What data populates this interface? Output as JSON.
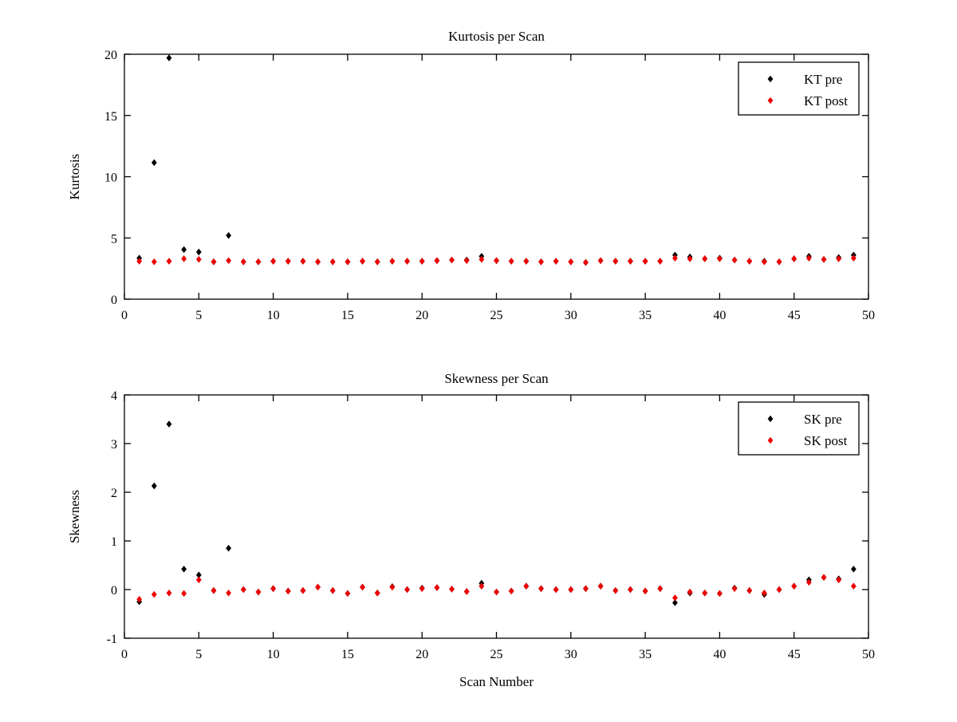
{
  "figure": {
    "background": "#ffffff",
    "axis_color": "#000000",
    "pre_color": "#000000",
    "post_color": "#ee0000"
  },
  "chart_data": [
    {
      "name": "kurtosis",
      "type": "scatter",
      "title": "Kurtosis per Scan",
      "xlabel": "",
      "ylabel": "Kurtosis",
      "xlim": [
        0,
        50
      ],
      "ylim": [
        0,
        20
      ],
      "xticks": [
        0,
        5,
        10,
        15,
        20,
        25,
        30,
        35,
        40,
        45,
        50
      ],
      "yticks": [
        0,
        5,
        10,
        15,
        20
      ],
      "grid": false,
      "marker": "diamond",
      "legend": {
        "position": "top-right",
        "entries": [
          "KT pre",
          "KT post"
        ]
      },
      "x": [
        1,
        2,
        3,
        4,
        5,
        6,
        7,
        8,
        9,
        10,
        11,
        12,
        13,
        14,
        15,
        16,
        17,
        18,
        19,
        20,
        21,
        22,
        23,
        24,
        25,
        26,
        27,
        28,
        29,
        30,
        31,
        32,
        33,
        34,
        35,
        36,
        37,
        38,
        39,
        40,
        41,
        42,
        43,
        44,
        45,
        46,
        47,
        48,
        49
      ],
      "series": [
        {
          "name": "KT pre",
          "color": "#000000",
          "values": [
            3.35,
            11.15,
            19.7,
            4.05,
            3.85,
            3.05,
            5.2,
            3.05,
            3.05,
            3.1,
            3.1,
            3.1,
            3.05,
            3.05,
            3.05,
            3.1,
            3.05,
            3.1,
            3.1,
            3.1,
            3.15,
            3.2,
            3.2,
            3.5,
            3.15,
            3.1,
            3.1,
            3.05,
            3.1,
            3.05,
            3.0,
            3.15,
            3.1,
            3.1,
            3.1,
            3.1,
            3.6,
            3.45,
            3.3,
            3.35,
            3.2,
            3.1,
            3.1,
            3.05,
            3.3,
            3.5,
            3.25,
            3.4,
            3.6
          ]
        },
        {
          "name": "KT post",
          "color": "#ee0000",
          "values": [
            3.1,
            3.05,
            3.1,
            3.3,
            3.25,
            3.05,
            3.15,
            3.05,
            3.05,
            3.1,
            3.1,
            3.1,
            3.05,
            3.05,
            3.05,
            3.1,
            3.05,
            3.1,
            3.1,
            3.1,
            3.15,
            3.2,
            3.15,
            3.25,
            3.15,
            3.1,
            3.1,
            3.05,
            3.1,
            3.05,
            3.0,
            3.15,
            3.1,
            3.1,
            3.1,
            3.1,
            3.35,
            3.3,
            3.3,
            3.3,
            3.2,
            3.1,
            3.05,
            3.05,
            3.3,
            3.35,
            3.25,
            3.3,
            3.35
          ]
        }
      ]
    },
    {
      "name": "skewness",
      "type": "scatter",
      "title": "Skewness per Scan",
      "xlabel": "Scan Number",
      "ylabel": "Skewness",
      "xlim": [
        0,
        50
      ],
      "ylim": [
        -1,
        4
      ],
      "xticks": [
        0,
        5,
        10,
        15,
        20,
        25,
        30,
        35,
        40,
        45,
        50
      ],
      "yticks": [
        -1,
        0,
        1,
        2,
        3,
        4
      ],
      "grid": false,
      "marker": "diamond",
      "legend": {
        "position": "top-right",
        "entries": [
          "SK pre",
          "SK post"
        ]
      },
      "x": [
        1,
        2,
        3,
        4,
        5,
        6,
        7,
        8,
        9,
        10,
        11,
        12,
        13,
        14,
        15,
        16,
        17,
        18,
        19,
        20,
        21,
        22,
        23,
        24,
        25,
        26,
        27,
        28,
        29,
        30,
        31,
        32,
        33,
        34,
        35,
        36,
        37,
        38,
        39,
        40,
        41,
        42,
        43,
        44,
        45,
        46,
        47,
        48,
        49
      ],
      "series": [
        {
          "name": "SK pre",
          "color": "#000000",
          "values": [
            -0.25,
            2.13,
            3.4,
            0.42,
            0.3,
            -0.02,
            0.85,
            0.0,
            -0.05,
            0.02,
            -0.03,
            -0.02,
            0.05,
            -0.02,
            -0.08,
            0.05,
            -0.07,
            0.06,
            0.0,
            0.03,
            0.04,
            0.01,
            -0.04,
            0.13,
            -0.05,
            -0.03,
            0.07,
            0.02,
            0.0,
            0.0,
            0.02,
            0.07,
            -0.02,
            0.0,
            -0.03,
            0.02,
            -0.27,
            -0.07,
            -0.07,
            -0.08,
            0.03,
            -0.02,
            -0.1,
            0.0,
            0.07,
            0.2,
            0.25,
            0.22,
            0.42
          ]
        },
        {
          "name": "SK post",
          "color": "#ee0000",
          "values": [
            -0.2,
            -0.1,
            -0.07,
            -0.08,
            0.2,
            -0.02,
            -0.07,
            0.0,
            -0.05,
            0.02,
            -0.03,
            -0.02,
            0.05,
            -0.02,
            -0.08,
            0.05,
            -0.07,
            0.05,
            0.0,
            0.02,
            0.04,
            0.01,
            -0.04,
            0.07,
            -0.05,
            -0.03,
            0.07,
            0.02,
            0.0,
            0.0,
            0.02,
            0.07,
            -0.02,
            0.0,
            -0.03,
            0.02,
            -0.17,
            -0.05,
            -0.07,
            -0.08,
            0.02,
            -0.02,
            -0.07,
            0.0,
            0.07,
            0.15,
            0.25,
            0.2,
            0.07
          ]
        }
      ]
    }
  ]
}
